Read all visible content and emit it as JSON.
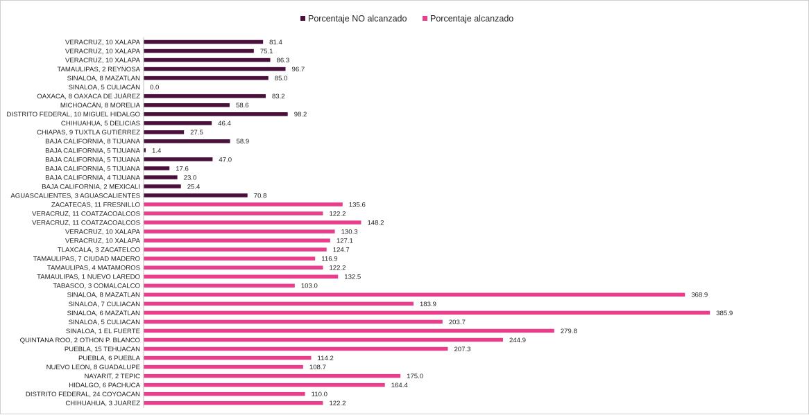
{
  "chart_data": {
    "type": "bar",
    "orientation": "horizontal",
    "title": "",
    "xlabel": "",
    "ylabel": "",
    "xlim": [
      0,
      400
    ],
    "grid": false,
    "legend_position": "top-center",
    "series": [
      {
        "name": "Porcentaje NO alcanzado",
        "color": "#4a0f3a",
        "categories": [
          "VERACRUZ, 10 XALAPA",
          "VERACRUZ, 10 XALAPA",
          "VERACRUZ, 10 XALAPA",
          "TAMAULIPAS, 2 REYNOSA",
          "SINALOA, 8 MAZATLAN",
          "SINALOA, 5 CULIACÁN",
          "OAXACA, 8 OAXACA DE JUÁREZ",
          "MICHOACÁN, 8 MORELIA",
          "DISTRITO FEDERAL, 10 MIGUEL HIDALGO",
          "CHIHUAHUA, 5 DELICIAS",
          "CHIAPAS, 9 TUXTLA GUTIÉRREZ",
          "BAJA CALIFORNIA, 8 TIJUANA",
          "BAJA CALIFORNIA, 5 TIJUANA",
          "BAJA CALIFORNIA, 5 TIJUANA",
          "BAJA CALIFORNIA, 5 TIJUANA",
          "BAJA CALIFORNIA, 4 TIJUANA",
          "BAJA CALIFORNIA, 2 MEXICALI",
          "AGUASCALIENTES, 3 AGUASCALIENTES"
        ],
        "values": [
          81.4,
          75.1,
          86.3,
          96.7,
          85.0,
          0.0,
          83.2,
          58.6,
          98.2,
          46.4,
          27.5,
          58.9,
          1.4,
          47.0,
          17.6,
          23.0,
          25.4,
          70.8
        ],
        "value_labels": [
          "81.4",
          "75.1",
          "86.3",
          "96.7",
          "85.0",
          "0.0",
          "83.2",
          "58.6",
          "98.2",
          "46.4",
          "27.5",
          "58.9",
          "1.4",
          "47.0",
          "17.6",
          "23.0",
          "25.4",
          "70.8"
        ]
      },
      {
        "name": "Porcentaje alcanzado",
        "color": "#e83e8c",
        "categories": [
          "ZACATECAS, 11 FRESNILLO",
          "VERACRUZ, 11 COATZACOALCOS",
          "VERACRUZ, 11 COATZACOALCOS",
          "VERACRUZ, 10 XALAPA",
          "VERACRUZ, 10 XALAPA",
          "TLAXCALA, 3 ZACATELCO",
          "TAMAULIPAS, 7 CIUDAD MADERO",
          "TAMAULIPAS, 4 MATAMOROS",
          "TAMAULIPAS, 1 NUEVO LAREDO",
          "TABASCO, 3 COMALCALCO",
          "SINALOA, 8 MAZATLAN",
          "SINALOA, 7 CULIACAN",
          "SINALOA, 6 MAZATLAN",
          "SINALOA, 5 CULIACAN",
          "SINALOA, 1 EL FUERTE",
          "QUINTANA ROO, 2 OTHON P. BLANCO",
          "PUEBLA, 15 TEHUACAN",
          "PUEBLA, 6 PUEBLA",
          "NUEVO LEON, 8 GUADALUPE",
          "NAYARIT, 2 TEPIC",
          "HIDALGO, 6 PACHUCA",
          "DISTRITO FEDERAL, 24 COYOACAN",
          "CHIHUAHUA, 3 JUAREZ"
        ],
        "values": [
          135.6,
          122.2,
          148.2,
          130.3,
          127.1,
          124.7,
          116.9,
          122.2,
          132.5,
          103.0,
          368.9,
          183.9,
          385.9,
          203.7,
          279.8,
          244.9,
          207.3,
          114.2,
          108.7,
          175.0,
          164.4,
          110.0,
          122.2
        ],
        "value_labels": [
          "135.6",
          "122.2",
          "148.2",
          "130.3",
          "127.1",
          "124.7",
          "116.9",
          "122.2",
          "132.5",
          "103.0",
          "368.9",
          "183.9",
          "385.9",
          "203.7",
          "279.8",
          "244.9",
          "207.3",
          "114.2",
          "108.7",
          "175.0",
          "164.4",
          "110.0",
          "122.2"
        ]
      }
    ]
  }
}
